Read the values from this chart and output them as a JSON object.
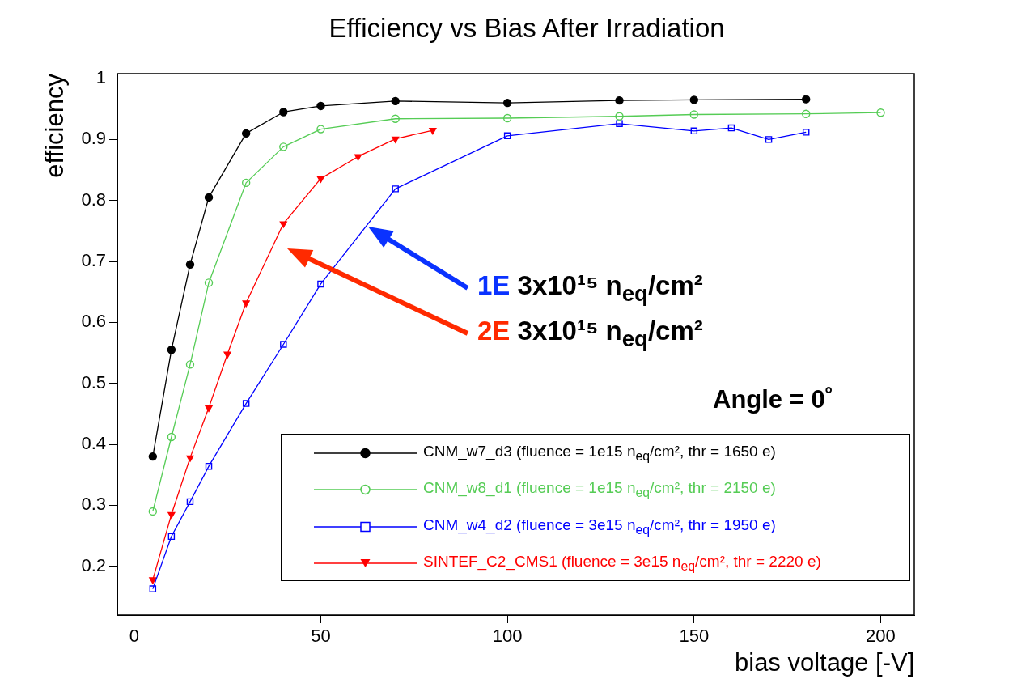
{
  "chart_data": {
    "type": "line",
    "title": "Efficiency vs Bias After Irradiation",
    "xlabel": "bias voltage [-V]",
    "ylabel": "efficiency",
    "xlim": [
      -4.5,
      209
    ],
    "xticks": [
      0,
      50,
      100,
      150,
      200
    ],
    "ylim": [
      0.12,
      1.008
    ],
    "yticks": [
      0.2,
      0.3,
      0.4,
      0.5,
      0.6,
      0.7,
      0.8,
      0.9,
      1
    ],
    "grid": false,
    "legend": "bottom right",
    "line_style": "solid",
    "series": [
      {
        "name": "CNM_w7_d3 (fluence = 1e15 n$_{eq}$/cm², thr = 1650 e)",
        "color": "#000000",
        "marker": "circle",
        "x": [
          5,
          10,
          15,
          20,
          30,
          40,
          50,
          70,
          100,
          130,
          150,
          180
        ],
        "values": [
          0.38,
          0.555,
          0.695,
          0.805,
          0.91,
          0.945,
          0.955,
          0.963,
          0.96,
          0.964,
          0.965,
          0.966
        ]
      },
      {
        "name": "CNM_w8_d1 (fluence = 1e15 n$_{eq}$/cm², thr = 2150 e)",
        "color": "#55cc55",
        "marker": "circle",
        "x": [
          5,
          10,
          15,
          20,
          30,
          40,
          50,
          70,
          100,
          130,
          150,
          180,
          200
        ],
        "values": [
          0.29,
          0.412,
          0.531,
          0.665,
          0.829,
          0.888,
          0.917,
          0.934,
          0.935,
          0.938,
          0.941,
          0.942,
          0.944
        ]
      },
      {
        "name": "CNM_w4_d2 (fluence = 3e15 n$_{eq}$/cm², thr = 1950 e)",
        "color": "#0000ff",
        "marker": "square",
        "x": [
          5,
          10,
          15,
          20,
          30,
          40,
          50,
          70,
          100,
          130,
          150,
          160,
          170,
          180
        ],
        "values": [
          0.163,
          0.249,
          0.306,
          0.364,
          0.467,
          0.564,
          0.663,
          0.819,
          0.906,
          0.926,
          0.914,
          0.919,
          0.9,
          0.912
        ]
      },
      {
        "name": "SINTEF_C2_CMS1 (fluence = 3e15 n$_{eq}$/cm², thr = 2220 e)",
        "color": "#ff0000",
        "marker": "triangle",
        "x": [
          5,
          10,
          15,
          20,
          25,
          30,
          40,
          50,
          60,
          70,
          80
        ],
        "values": [
          0.178,
          0.285,
          0.378,
          0.46,
          0.548,
          0.632,
          0.762,
          0.836,
          0.872,
          0.901,
          0.915
        ]
      }
    ],
    "annotations": [
      "1E  3x10¹⁵ n$_{eq}$/cm²",
      "2E  3x10¹⁵ n$_{eq}$/cm²",
      "Angle = 0˚"
    ]
  }
}
